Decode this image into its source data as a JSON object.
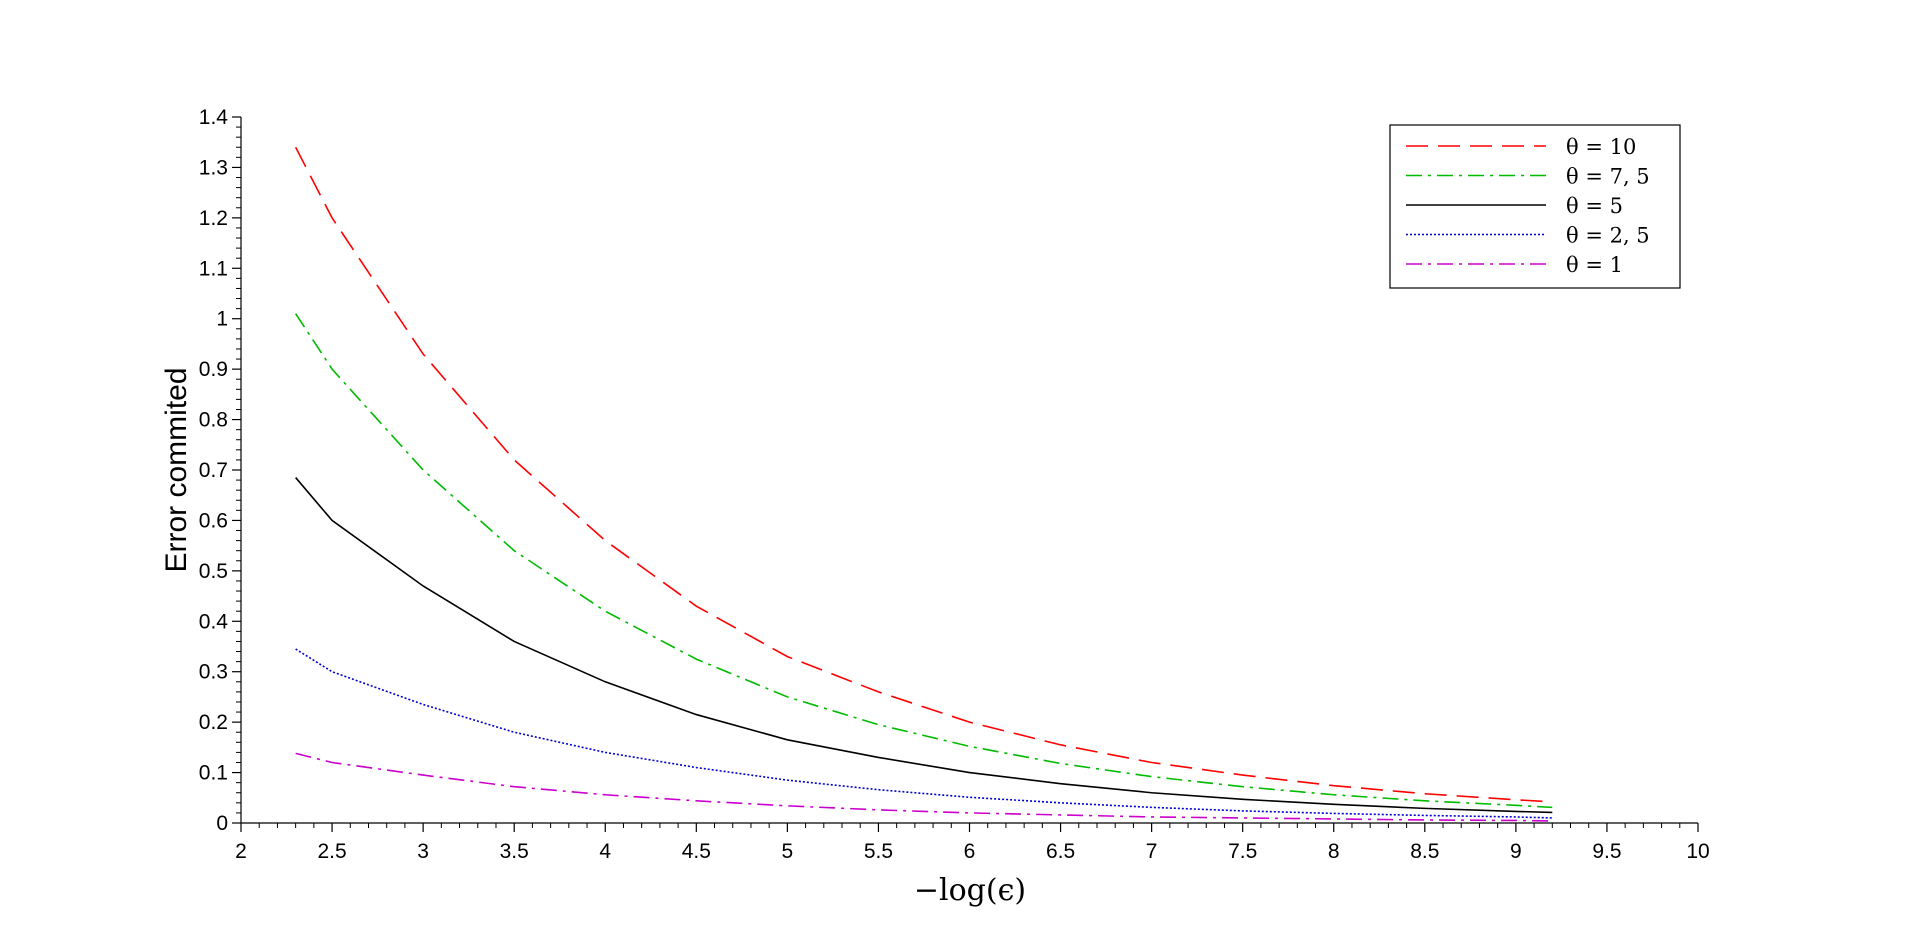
{
  "chart_data": {
    "type": "line",
    "xlabel": "−log(ϵ)",
    "ylabel": "Error commited",
    "xlim": [
      2,
      10
    ],
    "ylim": [
      0,
      1.4
    ],
    "x_ticks": [
      "2",
      "2.5",
      "3",
      "3.5",
      "4",
      "4.5",
      "5",
      "5.5",
      "6",
      "6.5",
      "7",
      "7.5",
      "8",
      "8.5",
      "9",
      "9.5",
      "10"
    ],
    "y_ticks": [
      "0",
      "0.1",
      "0.2",
      "0.3",
      "0.4",
      "0.5",
      "0.6",
      "0.7",
      "0.8",
      "0.9",
      "1",
      "1.1",
      "1.2",
      "1.3",
      "1.4"
    ],
    "legend_position": "top-right",
    "x": [
      2.3,
      2.5,
      3.0,
      3.5,
      4.0,
      4.5,
      5.0,
      5.5,
      6.0,
      6.5,
      7.0,
      7.5,
      8.0,
      8.5,
      9.0,
      9.2
    ],
    "series": [
      {
        "name": "θ = 10",
        "color": "#ff0000",
        "style": "dashed",
        "values": [
          1.34,
          1.2,
          0.93,
          0.72,
          0.56,
          0.43,
          0.33,
          0.26,
          0.2,
          0.155,
          0.12,
          0.095,
          0.074,
          0.058,
          0.046,
          0.042
        ]
      },
      {
        "name": "θ = 7, 5",
        "color": "#00bb00",
        "style": "dashdot",
        "values": [
          1.01,
          0.9,
          0.7,
          0.54,
          0.42,
          0.325,
          0.25,
          0.195,
          0.152,
          0.118,
          0.092,
          0.072,
          0.056,
          0.044,
          0.035,
          0.031
        ]
      },
      {
        "name": "θ = 5",
        "color": "#000000",
        "style": "solid",
        "values": [
          0.685,
          0.6,
          0.47,
          0.36,
          0.28,
          0.215,
          0.165,
          0.13,
          0.1,
          0.078,
          0.06,
          0.047,
          0.037,
          0.029,
          0.023,
          0.021
        ]
      },
      {
        "name": "θ = 2, 5",
        "color": "#0000cc",
        "style": "dotted",
        "values": [
          0.345,
          0.3,
          0.235,
          0.18,
          0.14,
          0.11,
          0.085,
          0.066,
          0.051,
          0.04,
          0.031,
          0.024,
          0.019,
          0.015,
          0.012,
          0.01
        ]
      },
      {
        "name": "θ = 1",
        "color": "#cc00cc",
        "style": "dashdot",
        "values": [
          0.138,
          0.12,
          0.095,
          0.072,
          0.056,
          0.044,
          0.034,
          0.026,
          0.02,
          0.016,
          0.012,
          0.01,
          0.008,
          0.006,
          0.005,
          0.004
        ]
      }
    ]
  }
}
